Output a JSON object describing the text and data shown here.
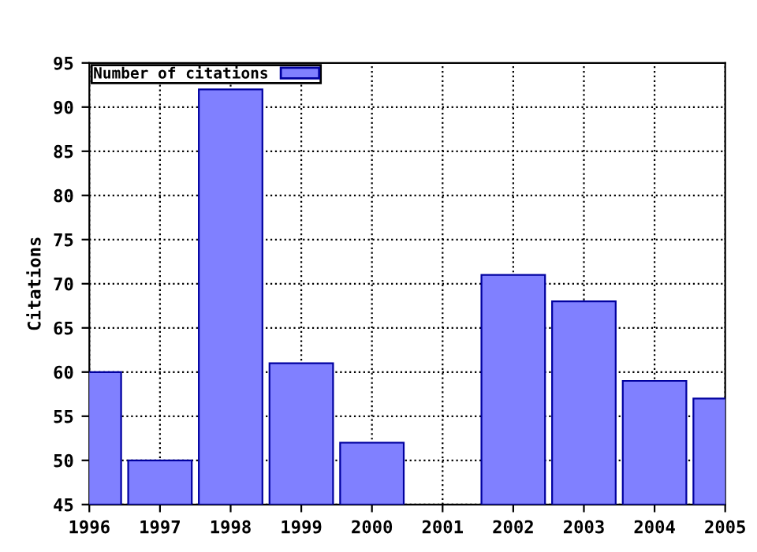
{
  "chart_data": {
    "type": "bar",
    "ylabel": "Citations",
    "x": [
      1996,
      1997,
      1998,
      1999,
      2000,
      2001,
      2002,
      2003,
      2004,
      2005
    ],
    "series": [
      {
        "name": "Number of citations",
        "color": "#8080ff",
        "values": [
          60,
          50,
          92,
          61,
          52,
          null,
          71,
          68,
          59,
          57
        ]
      }
    ],
    "xlim": [
      1996,
      2005
    ],
    "xticks": [
      1996,
      1997,
      1998,
      1999,
      2000,
      2001,
      2002,
      2003,
      2004,
      2005
    ],
    "ylim": [
      45,
      95
    ],
    "yticks": [
      45,
      50,
      55,
      60,
      65,
      70,
      75,
      80,
      85,
      90,
      95
    ],
    "grid": true,
    "line_style": "dotted",
    "legend": "top left"
  }
}
